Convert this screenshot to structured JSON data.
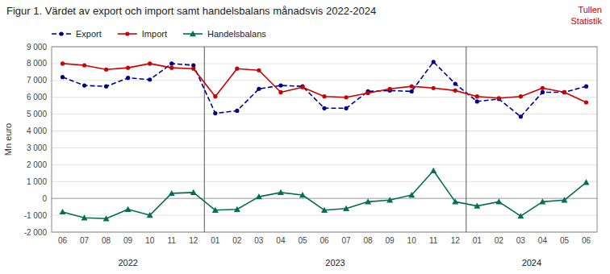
{
  "chart_data": {
    "type": "line",
    "title": "Figur 1. Värdet av export och import samt handelsbalans månadsvis 2022-2024",
    "ylabel": "Mn euro",
    "categories": [
      "06",
      "07",
      "08",
      "09",
      "10",
      "11",
      "12",
      "01",
      "02",
      "03",
      "04",
      "05",
      "06",
      "07",
      "08",
      "09",
      "10",
      "11",
      "12",
      "01",
      "02",
      "03",
      "04",
      "05",
      "06"
    ],
    "series": [
      {
        "name": "Export",
        "color": "#00008B",
        "line_style": "dashed",
        "marker": "circle",
        "values": [
          7200,
          6700,
          6650,
          7150,
          7050,
          8000,
          7900,
          5050,
          5200,
          6500,
          6700,
          6650,
          5350,
          5350,
          6350,
          6400,
          6350,
          8100,
          6800,
          5750,
          5900,
          4850,
          6300,
          6300,
          6650
        ]
      },
      {
        "name": "Import",
        "color": "#CC0000",
        "line_style": "solid",
        "marker": "circle",
        "values": [
          8000,
          7900,
          7650,
          7750,
          8000,
          7750,
          7700,
          6050,
          7700,
          7600,
          6300,
          6600,
          6050,
          6000,
          6250,
          6500,
          6650,
          6550,
          6400,
          6050,
          5950,
          6050,
          6550,
          6300,
          5700
        ]
      },
      {
        "name": "Handelsbalans",
        "color": "#007050",
        "line_style": "solid",
        "marker": "triangle",
        "values": [
          -800,
          -1150,
          -1200,
          -650,
          -1000,
          300,
          350,
          -700,
          -650,
          100,
          350,
          200,
          -700,
          -600,
          -200,
          -100,
          200,
          1650,
          -200,
          -450,
          -200,
          -1050,
          -200,
          -100,
          950
        ]
      }
    ],
    "ylim": [
      -2000,
      9000
    ],
    "yticks": [
      {
        "value": -2000,
        "label": "-2 000"
      },
      {
        "value": -1000,
        "label": "-1 000"
      },
      0,
      {
        "value": 1000,
        "label": "1 000"
      },
      {
        "value": 2000,
        "label": "2 000"
      },
      {
        "value": 3000,
        "label": "3 000"
      },
      {
        "value": 4000,
        "label": "4 000"
      },
      {
        "value": 5000,
        "label": "5 000"
      },
      {
        "value": 6000,
        "label": "6 000"
      },
      {
        "value": 7000,
        "label": "7 000"
      },
      {
        "value": 8000,
        "label": "8 000"
      },
      {
        "value": 9000,
        "label": "9 000"
      }
    ],
    "vlines": [
      6.5,
      18.5
    ],
    "annotations": [
      {
        "text": "2022",
        "x": 3.0
      },
      {
        "text": "2023",
        "x": 12.5
      },
      {
        "text": "2024",
        "x": 21.5
      },
      {
        "text": "Tullen",
        "color": "#CC0000"
      },
      {
        "text": "Statistik",
        "color": "#CC0000"
      }
    ],
    "grid": true,
    "legend": "top"
  }
}
